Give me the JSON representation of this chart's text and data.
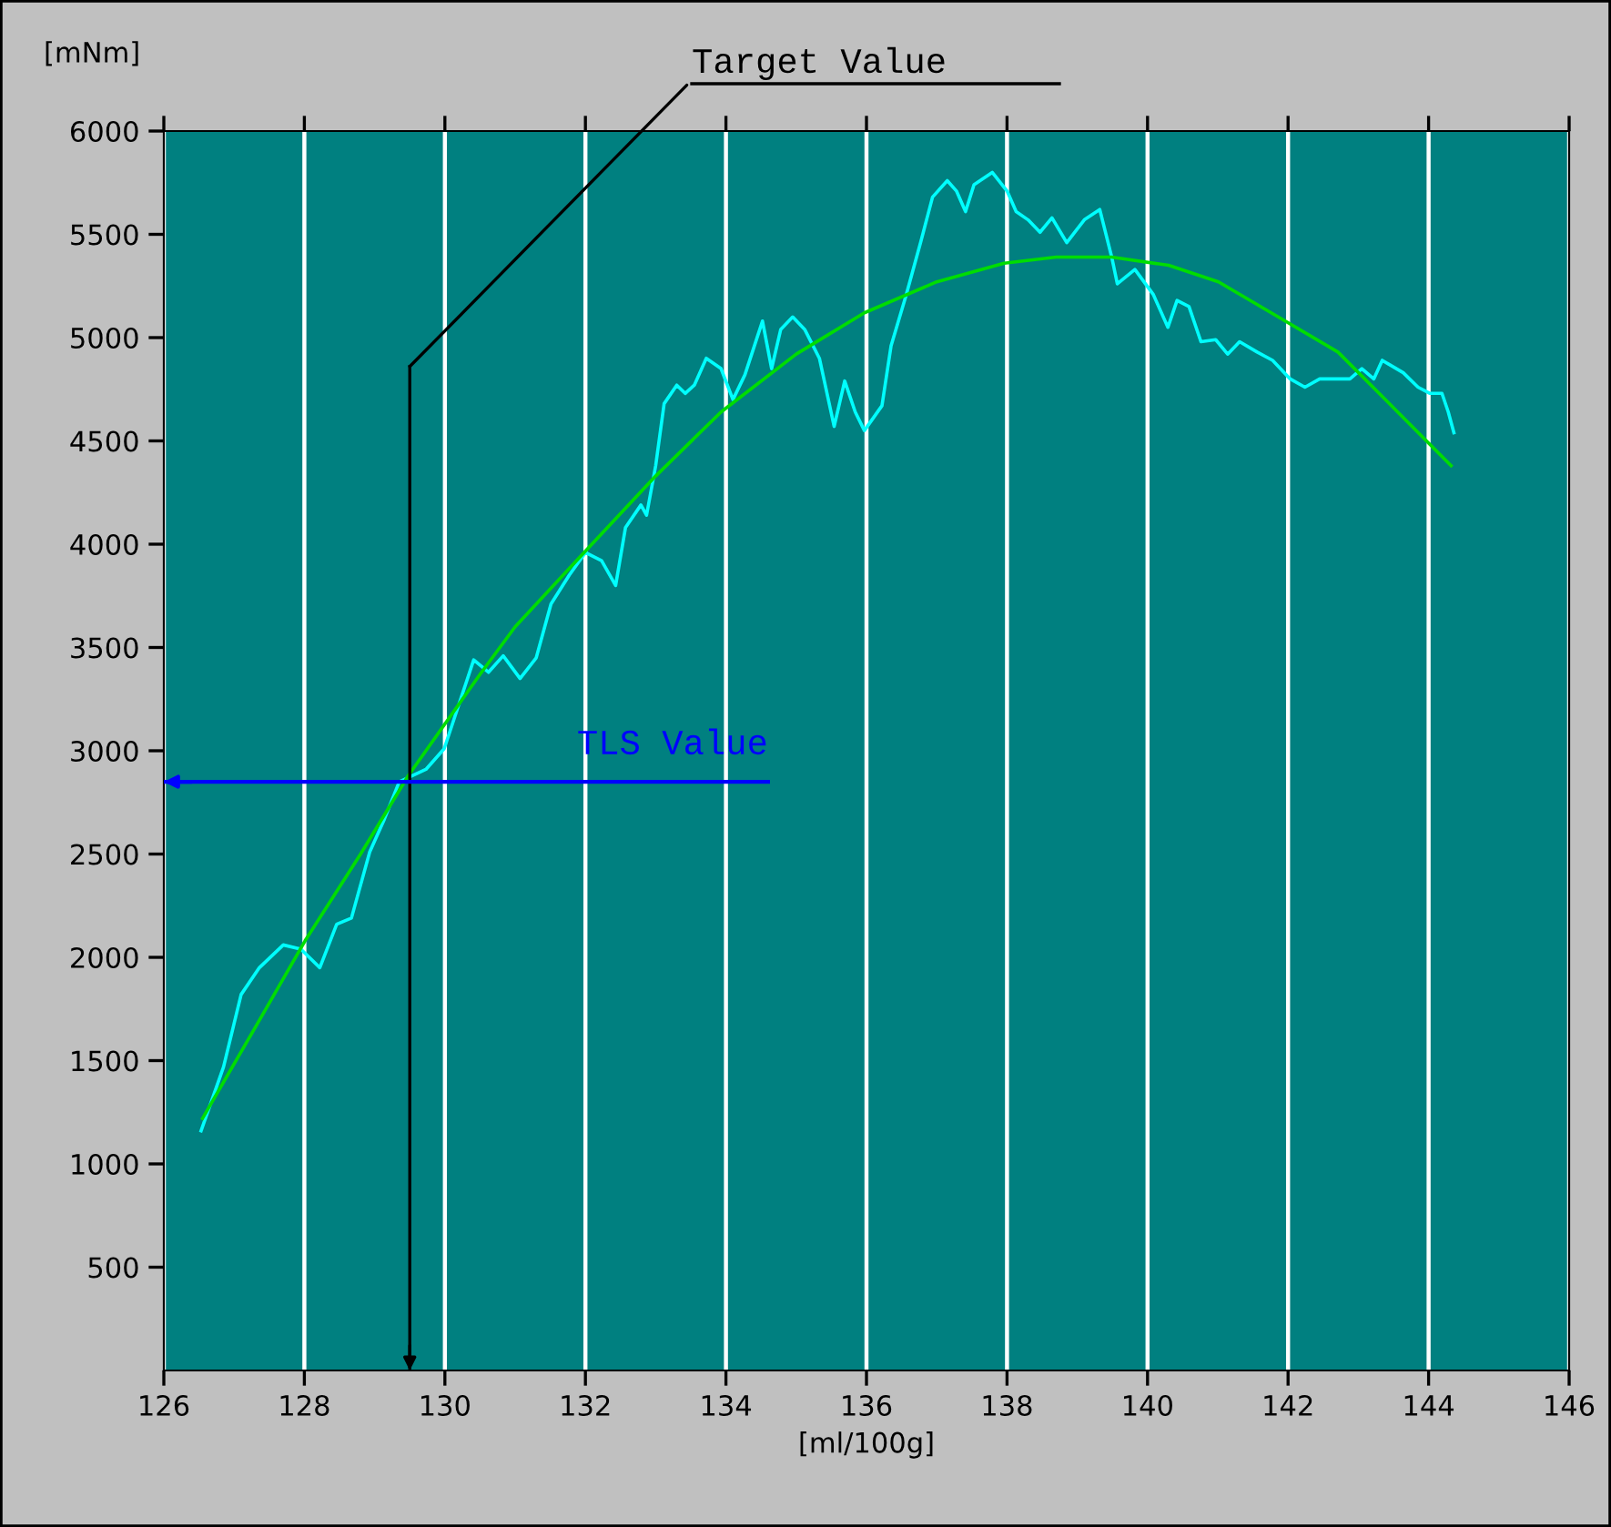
{
  "chart_data": {
    "type": "line",
    "xlabel": "[ml/100g]",
    "ylabel": "[mNm]",
    "xlim": [
      126,
      146
    ],
    "xticks": [
      126,
      128,
      130,
      132,
      134,
      136,
      138,
      140,
      142,
      144,
      146
    ],
    "ylim": [
      0,
      6000
    ],
    "yticks": [
      500,
      1000,
      1500,
      2000,
      2500,
      3000,
      3500,
      4000,
      4500,
      5000,
      5500,
      6000
    ],
    "grid": "x",
    "legend": false,
    "marker": "none",
    "line_style": "solid",
    "series": [
      {
        "color": "#00ffff",
        "x": [
          126.53,
          126.85,
          127.1,
          127.36,
          127.7,
          127.95,
          128.22,
          128.46,
          128.67,
          128.93,
          129.14,
          129.35,
          129.73,
          129.99,
          130.41,
          130.62,
          130.83,
          131.07,
          131.3,
          131.51,
          131.77,
          132.0,
          132.23,
          132.43,
          132.57,
          132.79,
          132.87,
          133.0,
          133.12,
          133.3,
          133.42,
          133.55,
          133.72,
          133.93,
          134.1,
          134.27,
          134.52,
          134.65,
          134.78,
          134.95,
          135.12,
          135.33,
          135.54,
          135.69,
          135.84,
          135.97,
          136.22,
          136.35,
          136.56,
          136.77,
          136.94,
          137.15,
          137.28,
          137.41,
          137.53,
          137.79,
          138.0,
          138.13,
          138.3,
          138.47,
          138.64,
          138.85,
          139.1,
          139.32,
          139.49,
          139.57,
          139.82,
          140.08,
          140.29,
          140.42,
          140.59,
          140.76,
          140.97,
          141.14,
          141.31,
          141.56,
          141.78,
          142.03,
          142.24,
          142.45,
          142.62,
          142.88,
          143.05,
          143.22,
          143.34,
          143.64,
          143.85,
          144.02,
          144.19,
          144.28,
          144.36
        ],
        "values": [
          1160,
          1470,
          1820,
          1950,
          2060,
          2040,
          1950,
          2160,
          2190,
          2510,
          2670,
          2850,
          2910,
          3010,
          3440,
          3380,
          3460,
          3350,
          3450,
          3710,
          3850,
          3960,
          3920,
          3800,
          4080,
          4190,
          4140,
          4380,
          4680,
          4770,
          4730,
          4770,
          4900,
          4850,
          4700,
          4820,
          5080,
          4850,
          5040,
          5100,
          5040,
          4900,
          4570,
          4790,
          4640,
          4550,
          4670,
          4960,
          5200,
          5460,
          5680,
          5760,
          5710,
          5610,
          5740,
          5800,
          5710,
          5610,
          5570,
          5510,
          5580,
          5460,
          5570,
          5620,
          5390,
          5260,
          5330,
          5210,
          5050,
          5180,
          5150,
          4980,
          4990,
          4920,
          4980,
          4930,
          4890,
          4800,
          4760,
          4800,
          4800,
          4800,
          4850,
          4800,
          4890,
          4830,
          4760,
          4730,
          4730,
          4640,
          4540
        ]
      },
      {
        "color": "#00dd00",
        "x": [
          126.55,
          127.3,
          128.01,
          128.8,
          129.48,
          130.5,
          131.0,
          132.01,
          133.0,
          133.93,
          135.0,
          135.97,
          137.0,
          137.96,
          138.7,
          139.49,
          140.3,
          141.01,
          141.86,
          142.71,
          143.56,
          144.32
        ],
        "values": [
          1220,
          1660,
          2080,
          2500,
          2880,
          3370,
          3600,
          3970,
          4330,
          4640,
          4920,
          5120,
          5270,
          5360,
          5390,
          5390,
          5350,
          5270,
          5100,
          4930,
          4640,
          4380
        ]
      }
    ],
    "ref_lines": [
      {
        "axis": "x",
        "value": 129.5,
        "label": "Target Value",
        "color": "#000000"
      },
      {
        "axis": "y",
        "value": 2850,
        "label": "TLS Value",
        "color": "#0000ff"
      }
    ]
  }
}
